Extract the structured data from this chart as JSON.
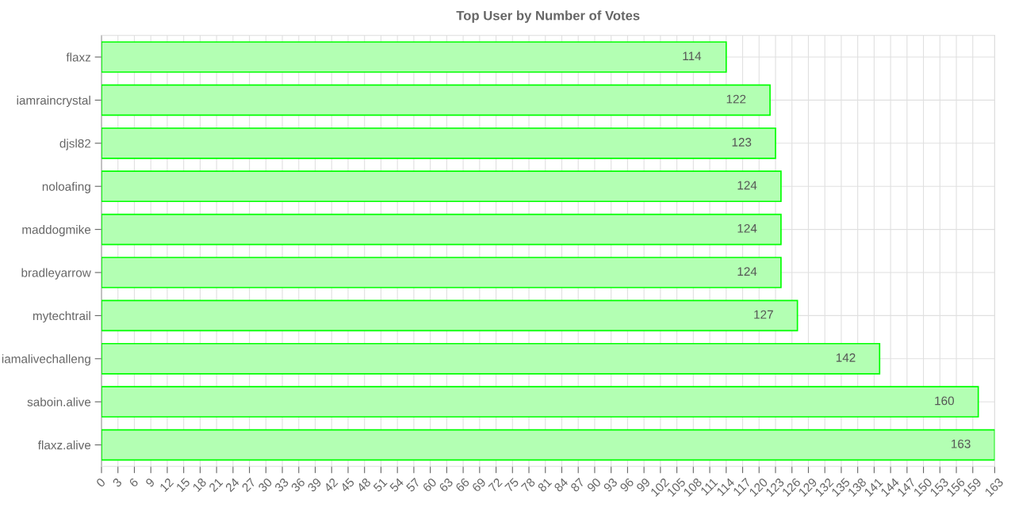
{
  "chart_data": {
    "type": "bar",
    "orientation": "horizontal",
    "title": "Top User by Number of Votes",
    "categories": [
      "flaxz",
      "iamraincrystal",
      "djsl82",
      "noloafing",
      "maddogmike",
      "bradleyarrow",
      "mytechtrail",
      "iamalivechalleng",
      "saboin.alive",
      "flaxz.alive"
    ],
    "series": [
      {
        "color": "#b3ffb3",
        "values": [
          114,
          122,
          123,
          124,
          124,
          124,
          127,
          142,
          160,
          163
        ]
      }
    ],
    "xlim": [
      0,
      163
    ],
    "xticks": [
      0,
      3,
      6,
      9,
      12,
      15,
      18,
      21,
      24,
      27,
      30,
      33,
      36,
      39,
      42,
      45,
      48,
      51,
      54,
      57,
      60,
      63,
      66,
      69,
      72,
      75,
      78,
      81,
      84,
      87,
      90,
      93,
      96,
      99,
      102,
      105,
      108,
      111,
      114,
      117,
      120,
      123,
      126,
      129,
      132,
      135,
      138,
      141,
      144,
      147,
      150,
      153,
      156,
      159,
      163
    ],
    "grid": true,
    "data_labels": true,
    "legend": false
  }
}
